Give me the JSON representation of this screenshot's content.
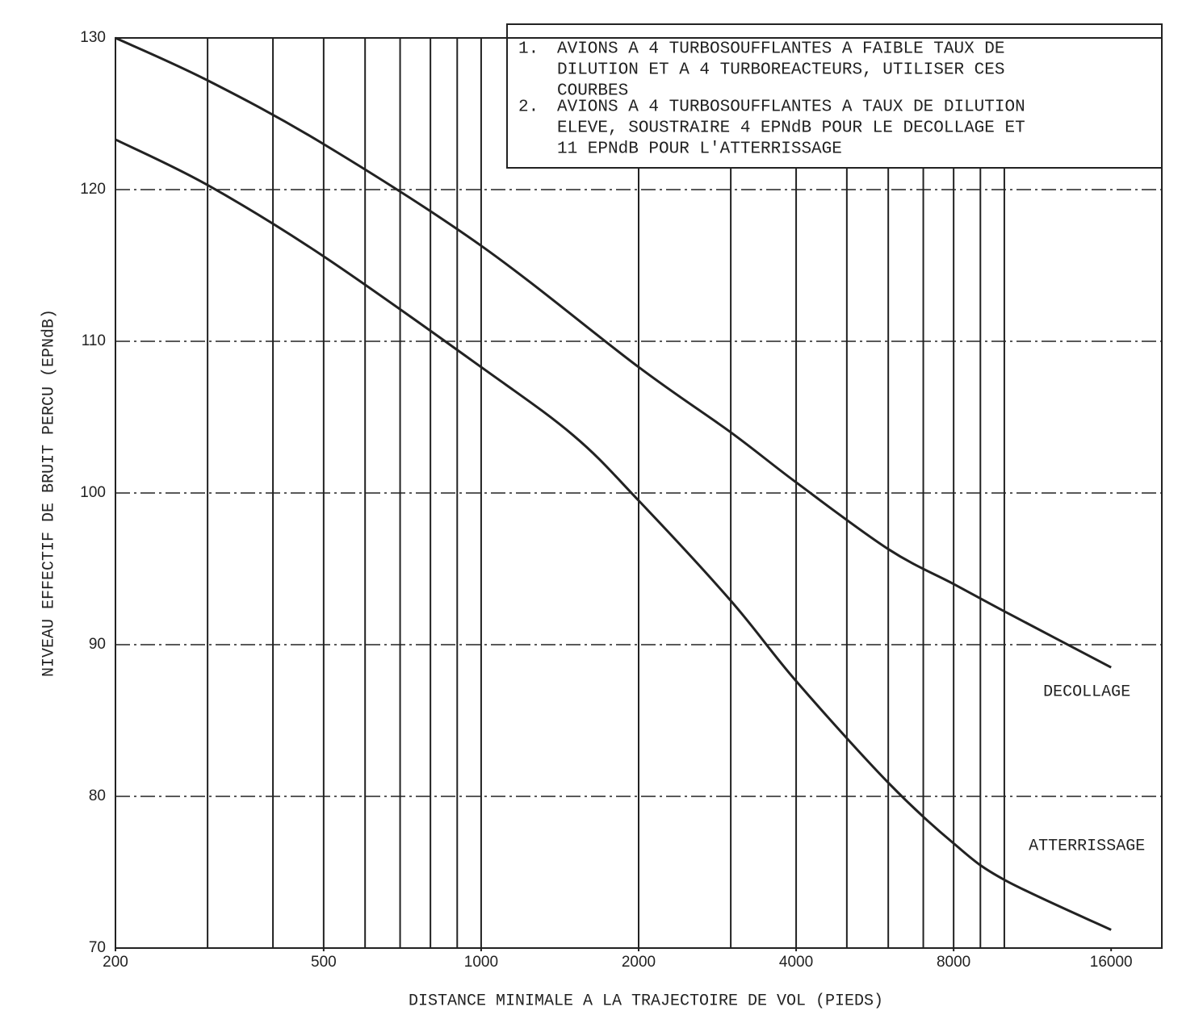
{
  "chart_data": {
    "type": "line",
    "x_label": "DISTANCE MINIMALE A LA TRAJECTOIRE DE VOL (PIEDS)",
    "y_label": "NIVEAU EFFECTIF DE BRUIT PERCU (EPNdB)",
    "x_scale": "log",
    "xlim": [
      200,
      20000
    ],
    "ylim": [
      70,
      130
    ],
    "xticks": [
      200,
      500,
      1000,
      2000,
      4000,
      8000,
      16000
    ],
    "yticks": [
      70,
      80,
      90,
      100,
      110,
      120,
      130
    ],
    "xgrid": [
      300,
      400,
      500,
      600,
      700,
      800,
      900,
      1000,
      2000,
      3000,
      4000,
      5000,
      6000,
      7000,
      8000,
      9000,
      10000
    ],
    "grid": true,
    "color": "#222222",
    "notes": [
      {
        "number": "1.",
        "lines": [
          "AVIONS A 4 TURBOSOUFFLANTES A FAIBLE TAUX DE",
          "DILUTION ET A 4 TURBOREACTEURS, UTILISER CES",
          "COURBES"
        ]
      },
      {
        "number": "2.",
        "lines": [
          "AVIONS A 4 TURBOSOUFFLANTES A TAUX DE DILUTION",
          "ELEVE, SOUSTRAIRE 4 EPNdB POUR LE DECOLLAGE ET",
          "11 EPNdB POUR L'ATTERRISSAGE"
        ]
      }
    ],
    "series": [
      {
        "name": "DECOLLAGE",
        "color": "#222222",
        "x": [
          200,
          300,
          500,
          1000,
          2000,
          3000,
          4000,
          6000,
          8000,
          10000,
          16000
        ],
        "values": [
          130,
          127.2,
          123,
          116.3,
          108.3,
          104,
          100.7,
          96.3,
          94,
          92.2,
          88.5
        ]
      },
      {
        "name": "ATTERRISSAGE",
        "color": "#222222",
        "x": [
          200,
          300,
          500,
          1000,
          1500,
          2000,
          3000,
          4000,
          6000,
          8000,
          10000,
          16000
        ],
        "values": [
          123.3,
          120.3,
          115.6,
          108.3,
          103.8,
          99.5,
          92.9,
          87.6,
          80.9,
          76.9,
          74.5,
          71.2
        ]
      }
    ]
  }
}
